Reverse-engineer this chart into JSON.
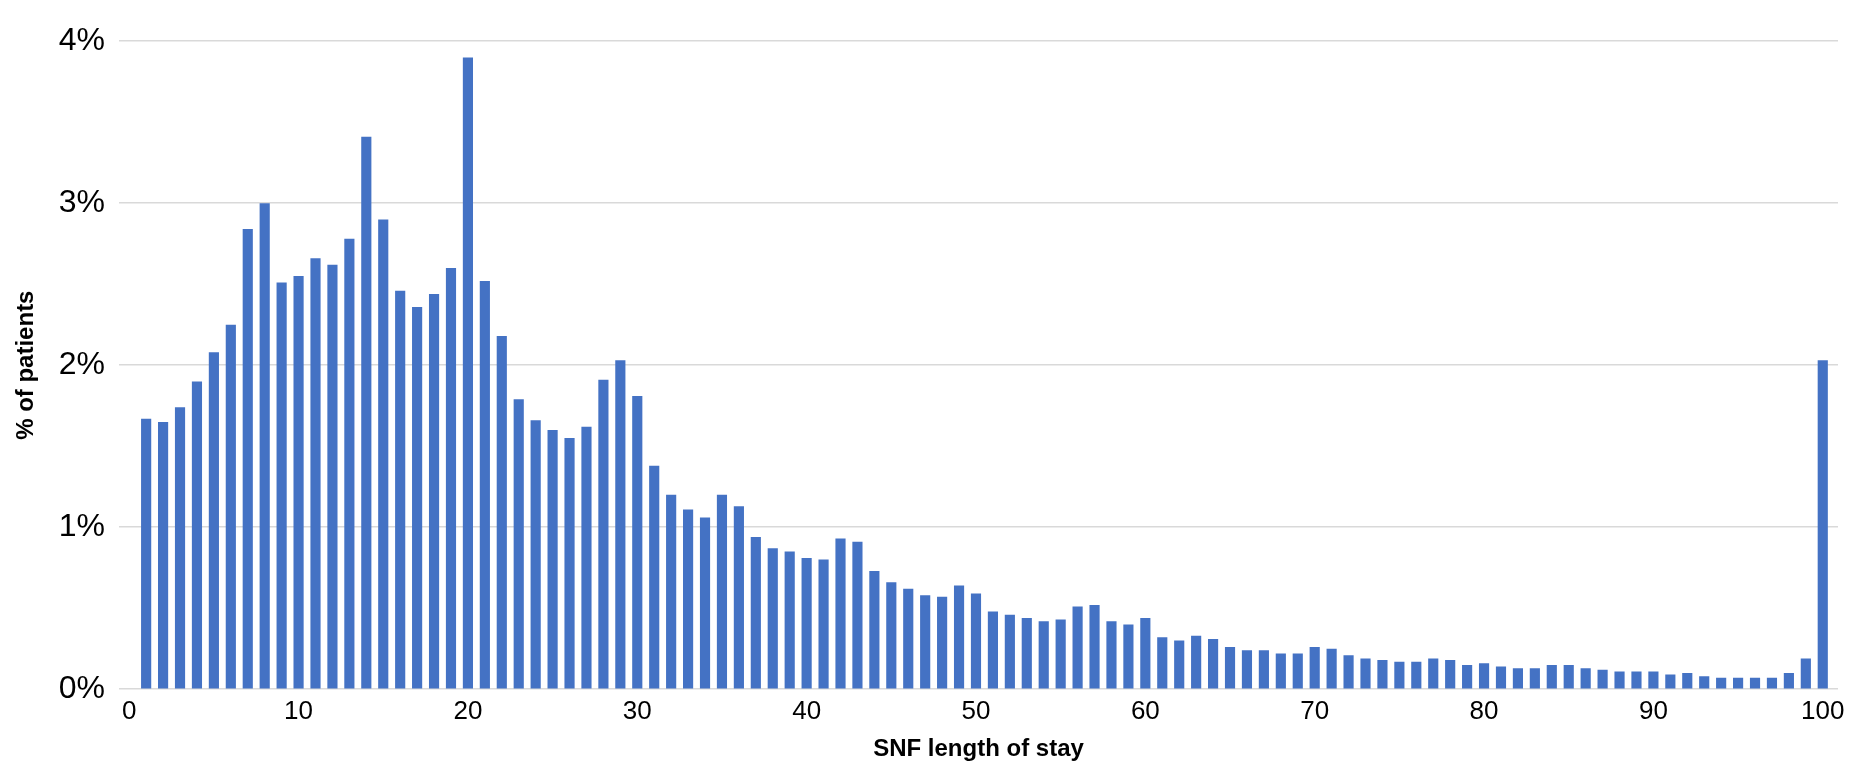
{
  "chart_data": {
    "type": "bar",
    "xlabel": "SNF length of stay",
    "ylabel": "% of patients",
    "color": "#4472c4",
    "x": [
      1,
      2,
      3,
      4,
      5,
      6,
      7,
      8,
      9,
      10,
      11,
      12,
      13,
      14,
      15,
      16,
      17,
      18,
      19,
      20,
      21,
      22,
      23,
      24,
      25,
      26,
      27,
      28,
      29,
      30,
      31,
      32,
      33,
      34,
      35,
      36,
      37,
      38,
      39,
      40,
      41,
      42,
      43,
      44,
      45,
      46,
      47,
      48,
      49,
      50,
      51,
      52,
      53,
      54,
      55,
      56,
      57,
      58,
      59,
      60,
      61,
      62,
      63,
      64,
      65,
      66,
      67,
      68,
      69,
      70,
      71,
      72,
      73,
      74,
      75,
      76,
      77,
      78,
      79,
      80,
      81,
      82,
      83,
      84,
      85,
      86,
      87,
      88,
      89,
      90,
      91,
      92,
      93,
      94,
      95,
      96,
      97,
      98,
      99,
      100
    ],
    "values": [
      1.67,
      1.65,
      1.74,
      1.9,
      2.08,
      2.25,
      2.84,
      3.0,
      2.51,
      2.55,
      2.66,
      2.62,
      2.78,
      3.41,
      2.9,
      2.46,
      2.36,
      2.44,
      2.6,
      3.9,
      2.52,
      2.18,
      1.79,
      1.66,
      1.6,
      1.55,
      1.62,
      1.91,
      2.03,
      1.81,
      1.38,
      1.2,
      1.11,
      1.06,
      1.2,
      1.13,
      0.94,
      0.87,
      0.85,
      0.81,
      0.8,
      0.93,
      0.91,
      0.73,
      0.66,
      0.62,
      0.58,
      0.57,
      0.64,
      0.59,
      0.48,
      0.46,
      0.44,
      0.42,
      0.43,
      0.51,
      0.52,
      0.42,
      0.4,
      0.44,
      0.32,
      0.3,
      0.33,
      0.31,
      0.26,
      0.24,
      0.24,
      0.22,
      0.22,
      0.26,
      0.25,
      0.21,
      0.19,
      0.18,
      0.17,
      0.17,
      0.19,
      0.18,
      0.15,
      0.16,
      0.14,
      0.13,
      0.13,
      0.15,
      0.15,
      0.13,
      0.12,
      0.11,
      0.11,
      0.11,
      0.09,
      0.1,
      0.08,
      0.07,
      0.07,
      0.07,
      0.07,
      0.1,
      0.19,
      2.03
    ],
    "xlim": [
      -0.6,
      100.9
    ],
    "xticks": [
      0,
      10,
      20,
      30,
      40,
      50,
      60,
      70,
      80,
      90,
      100
    ],
    "ylim": [
      0,
      4
    ],
    "yticks": [
      {
        "value": 0,
        "label": "0%"
      },
      {
        "value": 1,
        "label": "1%"
      },
      {
        "value": 2,
        "label": "2%"
      },
      {
        "value": 3,
        "label": "3%"
      },
      {
        "value": 4,
        "label": "4%"
      }
    ],
    "grid": "y"
  }
}
